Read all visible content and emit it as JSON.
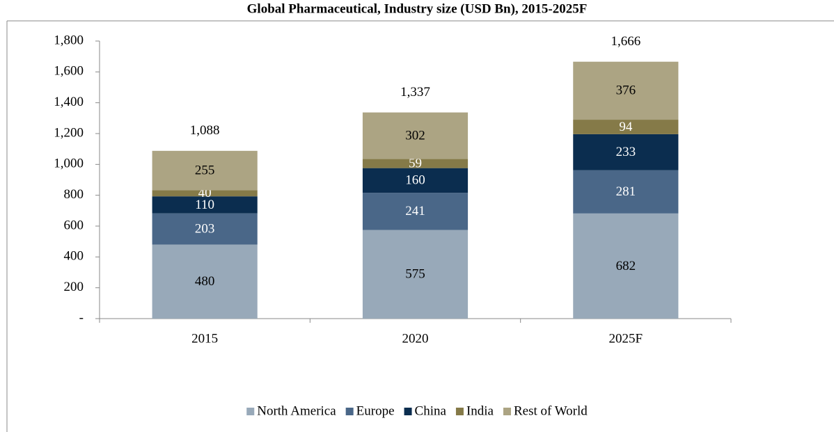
{
  "chart_data": {
    "type": "stacked_bar",
    "title": "Global Pharmaceutical, Industry size (USD Bn), 2015-2025F",
    "categories": [
      "2015",
      "2020",
      "2025F"
    ],
    "series": [
      {
        "name": "North America",
        "color": "#98a9b9",
        "label_color": "#000000",
        "values": [
          480,
          575,
          682
        ]
      },
      {
        "name": "Europe",
        "color": "#4a6788",
        "label_color": "#ffffff",
        "values": [
          203,
          241,
          281
        ]
      },
      {
        "name": "China",
        "color": "#0b2d4f",
        "label_color": "#ffffff",
        "values": [
          110,
          160,
          233
        ]
      },
      {
        "name": "India",
        "color": "#857a48",
        "label_color": "#ffffff",
        "values": [
          40,
          59,
          94
        ]
      },
      {
        "name": "Rest of World",
        "color": "#aca483",
        "label_color": "#000000",
        "values": [
          255,
          302,
          376
        ]
      }
    ],
    "totals": [
      1088,
      1337,
      1666
    ],
    "total_labels": [
      "1,088",
      "1,337",
      "1,666"
    ],
    "ylim": [
      0,
      1800
    ],
    "yticks": [
      {
        "value": 0,
        "label": "-"
      },
      200,
      400,
      600,
      800,
      {
        "value": 1000,
        "label": "1,000"
      },
      {
        "value": 1200,
        "label": "1,200"
      },
      {
        "value": 1400,
        "label": "1,400"
      },
      {
        "value": 1600,
        "label": "1,600"
      },
      {
        "value": 1800,
        "label": "1,800"
      }
    ],
    "legend": "bottom"
  }
}
